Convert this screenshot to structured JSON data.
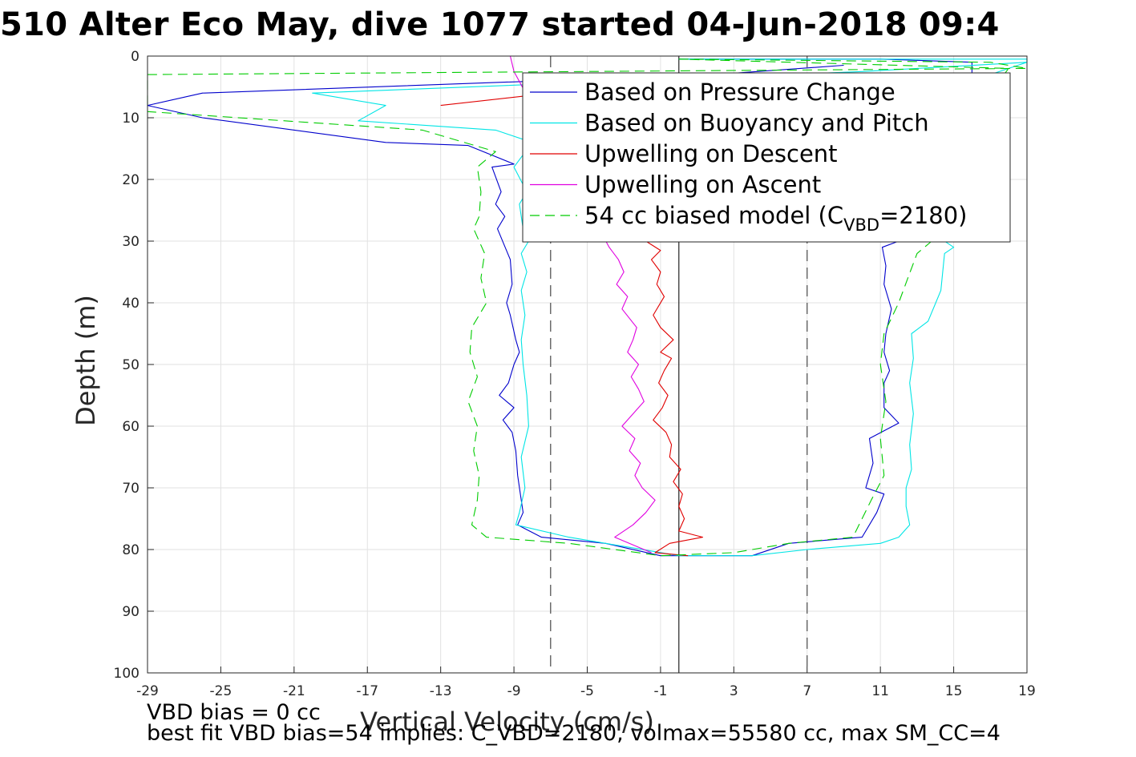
{
  "title": "510 Alter Eco May, dive 1077 started 04-Jun-2018 09:4",
  "footer": {
    "line1": "VBD bias = 0 cc",
    "line2": "best fit VBD bias=54 implies: C_VBD=2180, volmax=55580 cc, max SM_CC=4"
  },
  "chart_data": {
    "type": "line",
    "xlabel": "Vertical Velocity (cm/s)",
    "ylabel": "Depth (m)",
    "xlim": [
      -29,
      19
    ],
    "ylim": [
      0,
      100
    ],
    "y_reversed": true,
    "grid": true,
    "xticks": [
      -29,
      -25,
      -21,
      -17,
      -13,
      -9,
      -5,
      -1,
      3,
      7,
      11,
      15,
      19
    ],
    "yticks": [
      0,
      10,
      20,
      30,
      40,
      50,
      60,
      70,
      80,
      90,
      100
    ],
    "legend_placement": "top-right",
    "legend": [
      {
        "label": "Based on Pressure Change",
        "color": "#0000cc",
        "dash": "solid"
      },
      {
        "label": "Based on Buoyancy and Pitch",
        "color": "#00e5e5",
        "dash": "solid"
      },
      {
        "label": "Upwelling on Descent",
        "color": "#e00000",
        "dash": "solid"
      },
      {
        "label": "Upwelling on Ascent",
        "color": "#e000e0",
        "dash": "solid"
      },
      {
        "label_main": "54 cc biased model (C",
        "label_sub": "VBD",
        "label_end": "=2180)",
        "color": "#00cc00",
        "dash": "dashed"
      }
    ],
    "reference_lines": [
      {
        "x": -7,
        "style": "dashed",
        "color": "#555555"
      },
      {
        "x": 0,
        "style": "solid",
        "color": "#333333"
      },
      {
        "x": 7,
        "style": "dashed",
        "color": "#555555"
      }
    ],
    "series": [
      {
        "name": "Based on Pressure Change",
        "color": "#0000cc",
        "dash": "solid",
        "points": [
          [
            9,
            1.5
          ],
          [
            2,
            3
          ],
          [
            -26,
            6
          ],
          [
            -29,
            8
          ],
          [
            -26,
            10
          ],
          [
            -16,
            14
          ],
          [
            -11.5,
            14.5
          ],
          [
            -9,
            17.5
          ],
          [
            -10.2,
            18
          ],
          [
            -9.7,
            22
          ],
          [
            -10,
            24
          ],
          [
            -9.5,
            26
          ],
          [
            -9.9,
            28
          ],
          [
            -9.2,
            33
          ],
          [
            -9.1,
            37
          ],
          [
            -9.4,
            40
          ],
          [
            -9.2,
            42
          ],
          [
            -8.9,
            46
          ],
          [
            -8.7,
            48
          ],
          [
            -9.0,
            50
          ],
          [
            -9.3,
            53
          ],
          [
            -9.8,
            55
          ],
          [
            -9.0,
            57
          ],
          [
            -9.6,
            59
          ],
          [
            -9.1,
            61
          ],
          [
            -8.9,
            64
          ],
          [
            -8.8,
            68
          ],
          [
            -8.6,
            72
          ],
          [
            -8.5,
            74
          ],
          [
            -8.8,
            76
          ],
          [
            -7.5,
            78
          ],
          [
            -4,
            79
          ],
          [
            -1,
            81
          ],
          [
            1,
            81
          ],
          [
            4,
            81
          ],
          [
            6,
            79
          ],
          [
            10,
            78
          ],
          [
            10.8,
            74
          ],
          [
            11.2,
            71
          ],
          [
            10.2,
            70
          ],
          [
            10.6,
            66
          ],
          [
            10.4,
            62
          ],
          [
            12,
            59.5
          ],
          [
            11.2,
            57
          ],
          [
            11.2,
            53
          ],
          [
            11.5,
            51
          ],
          [
            11.2,
            48
          ],
          [
            11.3,
            45
          ],
          [
            11.6,
            41
          ],
          [
            11.2,
            37
          ],
          [
            11.3,
            34
          ],
          [
            11.1,
            31
          ],
          [
            12,
            30
          ],
          [
            13,
            28
          ],
          [
            12,
            22
          ],
          [
            13,
            15
          ],
          [
            14,
            8
          ],
          [
            16,
            4
          ],
          [
            16,
            1
          ],
          [
            11,
            0.5
          ],
          [
            0,
            0.5
          ]
        ]
      },
      {
        "name": "Based on Buoyancy and Pitch",
        "color": "#00e5e5",
        "dash": "solid",
        "points": [
          [
            19,
            1
          ],
          [
            10,
            2.5
          ],
          [
            -20,
            6
          ],
          [
            -16,
            8
          ],
          [
            -17.5,
            10.5
          ],
          [
            -10,
            12
          ],
          [
            -8,
            14
          ],
          [
            -9,
            18
          ],
          [
            -8.3,
            22
          ],
          [
            -8.7,
            24
          ],
          [
            -8.5,
            28
          ],
          [
            -8.2,
            30
          ],
          [
            -8.6,
            32
          ],
          [
            -8.3,
            35
          ],
          [
            -8.6,
            38
          ],
          [
            -8.4,
            42
          ],
          [
            -8.6,
            46
          ],
          [
            -8.5,
            50
          ],
          [
            -8.3,
            55
          ],
          [
            -8.2,
            60
          ],
          [
            -8.6,
            65
          ],
          [
            -8.4,
            70
          ],
          [
            -8.7,
            74
          ],
          [
            -8.9,
            76
          ],
          [
            -6,
            78
          ],
          [
            -3,
            79.5
          ],
          [
            0,
            81
          ],
          [
            4,
            81
          ],
          [
            7,
            80
          ],
          [
            11,
            79
          ],
          [
            12,
            78
          ],
          [
            12.6,
            76
          ],
          [
            12.4,
            73
          ],
          [
            12.4,
            70
          ],
          [
            12.7,
            67
          ],
          [
            12.6,
            63
          ],
          [
            12.8,
            58
          ],
          [
            12.6,
            53
          ],
          [
            12.8,
            49
          ],
          [
            12.7,
            45
          ],
          [
            13.6,
            43
          ],
          [
            14.3,
            38
          ],
          [
            14.5,
            32
          ],
          [
            15,
            31
          ],
          [
            14,
            29
          ],
          [
            14,
            24
          ],
          [
            14,
            17
          ],
          [
            13,
            14
          ],
          [
            11,
            12
          ],
          [
            16,
            8
          ],
          [
            16,
            4
          ],
          [
            19,
            1
          ],
          [
            19,
            0.5
          ],
          [
            0,
            0.5
          ]
        ]
      },
      {
        "name": "Upwelling on Descent",
        "color": "#e00000",
        "dash": "solid",
        "points": [
          [
            -13,
            8
          ],
          [
            -7,
            6
          ],
          [
            -1.8,
            30
          ],
          [
            -1,
            31.5
          ],
          [
            -1.5,
            33
          ],
          [
            -1,
            35
          ],
          [
            -1.2,
            37
          ],
          [
            -0.8,
            39
          ],
          [
            -1.4,
            42
          ],
          [
            -1,
            44
          ],
          [
            -0.3,
            46
          ],
          [
            -1.0,
            48
          ],
          [
            -0.4,
            49
          ],
          [
            -0.8,
            51
          ],
          [
            -1.1,
            53
          ],
          [
            -0.6,
            55
          ],
          [
            -0.9,
            57
          ],
          [
            -1.4,
            59
          ],
          [
            -0.7,
            61
          ],
          [
            -0.4,
            63
          ],
          [
            -0.5,
            65
          ],
          [
            0.1,
            67
          ],
          [
            -0.3,
            69
          ],
          [
            0.2,
            71
          ],
          [
            0,
            73
          ],
          [
            0.3,
            75
          ],
          [
            0,
            77
          ],
          [
            1.3,
            78
          ],
          [
            -0.5,
            79
          ],
          [
            -1.3,
            80.5
          ],
          [
            0.5,
            81
          ]
        ]
      },
      {
        "name": "Upwelling on Ascent",
        "color": "#e000e0",
        "dash": "solid",
        "points": [
          [
            -9.2,
            0
          ],
          [
            -9,
            2.5
          ],
          [
            -3.8,
            31
          ],
          [
            -3.3,
            33
          ],
          [
            -3.0,
            35
          ],
          [
            -3.4,
            37
          ],
          [
            -2.8,
            39
          ],
          [
            -3.1,
            41
          ],
          [
            -2.3,
            44
          ],
          [
            -2.5,
            46
          ],
          [
            -2.8,
            48
          ],
          [
            -2.2,
            50
          ],
          [
            -2.6,
            52
          ],
          [
            -2.2,
            54
          ],
          [
            -1.9,
            56
          ],
          [
            -2.5,
            58
          ],
          [
            -3.1,
            60
          ],
          [
            -2.4,
            62
          ],
          [
            -2.7,
            64
          ],
          [
            -2.1,
            66
          ],
          [
            -2.4,
            68
          ],
          [
            -2.0,
            70
          ],
          [
            -1.3,
            72
          ],
          [
            -1.8,
            74
          ],
          [
            -2.5,
            76
          ],
          [
            -3.5,
            78
          ],
          [
            -1.5,
            80.5
          ]
        ]
      },
      {
        "name": "54 cc biased model",
        "color": "#00cc00",
        "dash": "dashed",
        "points": [
          [
            0,
            0.5
          ],
          [
            17,
            1
          ],
          [
            19,
            2
          ],
          [
            -29,
            3
          ],
          [
            -29,
            9
          ],
          [
            -14,
            12
          ],
          [
            -10,
            15.5
          ],
          [
            -11,
            18
          ],
          [
            -10.8,
            22
          ],
          [
            -10.9,
            26
          ],
          [
            -11.2,
            28
          ],
          [
            -10.6,
            32
          ],
          [
            -10.8,
            36
          ],
          [
            -10.5,
            40
          ],
          [
            -11.3,
            44
          ],
          [
            -11.4,
            48
          ],
          [
            -11.0,
            52
          ],
          [
            -11.5,
            56
          ],
          [
            -11.0,
            60
          ],
          [
            -11.2,
            64
          ],
          [
            -10.9,
            68
          ],
          [
            -11.0,
            72
          ],
          [
            -11.3,
            76
          ],
          [
            -10.5,
            78
          ],
          [
            -6,
            79
          ],
          [
            -1,
            81
          ],
          [
            3,
            80.5
          ],
          [
            6,
            79
          ],
          [
            9.5,
            78
          ],
          [
            10.5,
            72
          ],
          [
            11.2,
            68
          ],
          [
            11.0,
            62
          ],
          [
            11.3,
            56
          ],
          [
            11.0,
            50
          ],
          [
            11.2,
            45
          ],
          [
            12,
            40
          ],
          [
            12.5,
            36
          ],
          [
            13,
            32
          ],
          [
            13.8,
            30
          ],
          [
            12,
            25
          ],
          [
            13,
            18
          ],
          [
            16,
            12
          ],
          [
            17,
            6
          ],
          [
            18,
            2
          ],
          [
            0,
            0.5
          ]
        ]
      }
    ]
  }
}
